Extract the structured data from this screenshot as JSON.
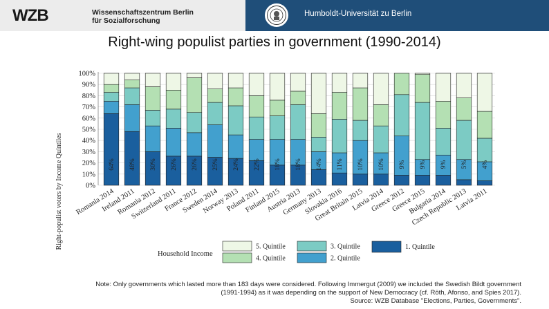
{
  "header": {
    "logo_text": "WZB",
    "org_line1": "Wissenschaftszentrum Berlin",
    "org_line2": "für Sozialforschung",
    "partner": "Humboldt-Universität zu Berlin"
  },
  "title": "Right-wing populist parties in government (1990-2014)",
  "chart_data": {
    "type": "bar",
    "stacked": true,
    "ylabel": "Right-populist voters by Income Quintiles",
    "ylim": [
      0,
      100
    ],
    "yticks": [
      "0%",
      "10%",
      "20%",
      "30%",
      "40%",
      "50%",
      "60%",
      "70%",
      "80%",
      "90%",
      "100%"
    ],
    "categories": [
      "Romania 2014",
      "Ireland 2011",
      "Romania 2012",
      "Switzerland 2011",
      "France 2012",
      "Sweden 2014",
      "Norway 2013",
      "Poland 2011",
      "Finland 2015",
      "Austria 2013",
      "Germany 2013",
      "Slovakia 2016",
      "Great Britain 2015",
      "Latvia 2014",
      "Greece 2012",
      "Greece 2015",
      "Bulgaria 2014",
      "Czech Republic 2013",
      "Latvia 2011"
    ],
    "q1_labels": [
      "64%",
      "48%",
      "30%",
      "26%",
      "26%",
      "25%",
      "24%",
      "22%",
      "18%",
      "18%",
      "14%",
      "11%",
      "10%",
      "10%",
      "9%",
      "9%",
      "9%",
      "5%",
      "4%"
    ],
    "series": [
      {
        "name": "1. Quintile",
        "color": "#1a5f9e",
        "values": [
          64,
          48,
          30,
          26,
          26,
          25,
          24,
          22,
          18,
          18,
          14,
          11,
          10,
          10,
          9,
          9,
          9,
          5,
          4
        ]
      },
      {
        "name": "2. Quintile",
        "color": "#42a0ce",
        "values": [
          11,
          24,
          23,
          25,
          21,
          29,
          21,
          19,
          23,
          23,
          16,
          18,
          30,
          19,
          35,
          14,
          18,
          18,
          17
        ]
      },
      {
        "name": "3. Quintile",
        "color": "#7ccbc4",
        "values": [
          8,
          15,
          14,
          17,
          18,
          20,
          26,
          20,
          21,
          31,
          13,
          30,
          18,
          24,
          37,
          51,
          24,
          35,
          21
        ]
      },
      {
        "name": "4. Quintile",
        "color": "#b4e0b3",
        "values": [
          7,
          7,
          21,
          17,
          31,
          12,
          16,
          19,
          14,
          12,
          21,
          24,
          29,
          19,
          19,
          25,
          24,
          20,
          24
        ]
      },
      {
        "name": "5. Quintile",
        "color": "#eef7e6",
        "values": [
          10,
          6,
          12,
          15,
          4,
          14,
          13,
          20,
          24,
          16,
          36,
          17,
          13,
          28,
          0,
          1,
          25,
          22,
          34
        ]
      }
    ],
    "legend": {
      "title": "Household Income",
      "position": "bottom",
      "order": [
        "5. Quintile",
        "4. Quintile",
        "3. Quintile",
        "2. Quintile",
        "1. Quintile"
      ]
    }
  },
  "note": {
    "line1": "Note: Only governments which lasted more than 183 days were considered. Following Immergut (2009) we included the Swedish Bildt government",
    "line2": "(1991-1994) as it was depending on the support of New Democracy (cf. Röth, Afonso, and Spies 2017).",
    "line3": "Source: WZB Database \"Elections, Parties, Governments\"."
  }
}
